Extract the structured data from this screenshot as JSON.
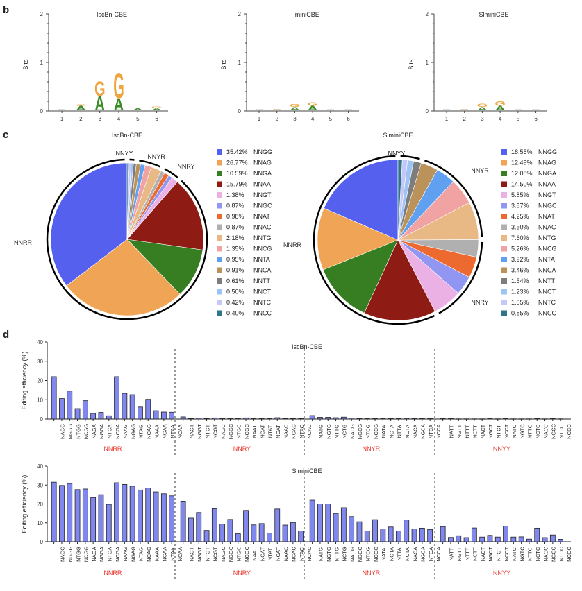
{
  "panels": {
    "b": "b",
    "c": "c",
    "d": "d"
  },
  "chart_data": [
    {
      "type": "logo",
      "panel": "b",
      "title": "IscBn-CBE",
      "ylabel": "Bits",
      "ylim": [
        0,
        2
      ],
      "yticks": [
        "0",
        "1",
        "2"
      ],
      "xticks": [
        "1",
        "2",
        "3",
        "4",
        "5",
        "6"
      ],
      "positions": [
        {
          "pos": 1,
          "letters": []
        },
        {
          "pos": 2,
          "letters": [
            {
              "l": "A",
              "h": 0.09
            },
            {
              "l": "G",
              "h": 0.03
            }
          ]
        },
        {
          "pos": 3,
          "letters": [
            {
              "l": "A",
              "h": 0.3
            },
            {
              "l": "G",
              "h": 0.3
            }
          ]
        },
        {
          "pos": 4,
          "letters": [
            {
              "l": "A",
              "h": 0.25
            },
            {
              "l": "G",
              "h": 0.53
            }
          ]
        },
        {
          "pos": 5,
          "letters": [
            {
              "l": "A",
              "h": 0.05
            }
          ]
        },
        {
          "pos": 6,
          "letters": [
            {
              "l": "A",
              "h": 0.05
            },
            {
              "l": "G",
              "h": 0.03
            }
          ]
        }
      ]
    },
    {
      "type": "logo",
      "panel": "b",
      "title": "IminiCBE",
      "ylabel": "Bits",
      "ylim": [
        0,
        2
      ],
      "yticks": [
        "0",
        "1",
        "2"
      ],
      "xticks": [
        "1",
        "2",
        "3",
        "4",
        "5",
        "6"
      ],
      "positions": [
        {
          "pos": 1,
          "letters": []
        },
        {
          "pos": 2,
          "letters": [
            {
              "l": "G",
              "h": 0.02
            }
          ]
        },
        {
          "pos": 3,
          "letters": [
            {
              "l": "A",
              "h": 0.07
            },
            {
              "l": "G",
              "h": 0.06
            }
          ]
        },
        {
          "pos": 4,
          "letters": [
            {
              "l": "A",
              "h": 0.09
            },
            {
              "l": "G",
              "h": 0.08
            }
          ]
        },
        {
          "pos": 5,
          "letters": []
        },
        {
          "pos": 6,
          "letters": []
        }
      ]
    },
    {
      "type": "logo",
      "panel": "b",
      "title": "SlminiCBE",
      "ylabel": "Bits",
      "ylim": [
        0,
        2
      ],
      "yticks": [
        "0",
        "1",
        "2"
      ],
      "xticks": [
        "1",
        "2",
        "3",
        "4",
        "5",
        "6"
      ],
      "positions": [
        {
          "pos": 1,
          "letters": []
        },
        {
          "pos": 2,
          "letters": [
            {
              "l": "G",
              "h": 0.02
            }
          ]
        },
        {
          "pos": 3,
          "letters": [
            {
              "l": "A",
              "h": 0.07
            },
            {
              "l": "G",
              "h": 0.07
            }
          ]
        },
        {
          "pos": 4,
          "letters": [
            {
              "l": "A",
              "h": 0.09
            },
            {
              "l": "G",
              "h": 0.09
            }
          ]
        },
        {
          "pos": 5,
          "letters": []
        },
        {
          "pos": 6,
          "letters": []
        }
      ]
    },
    {
      "type": "pie",
      "panel": "c",
      "title": "IscBn-CBE",
      "groups": [
        {
          "label": "NNRR",
          "members": [
            "NNGG",
            "NNAG",
            "NNGA",
            "NNAA"
          ]
        },
        {
          "label": "NNRY",
          "members": [
            "NNGT",
            "NNGC",
            "NNAT",
            "NNAC"
          ]
        },
        {
          "label": "NNYR",
          "members": [
            "NNTG",
            "NNCG",
            "NNTA",
            "NNCA"
          ]
        },
        {
          "label": "NNYY",
          "members": [
            "NNTT",
            "NNCT",
            "NNTC",
            "NNCC"
          ]
        }
      ],
      "slices": [
        {
          "label": "NNGG",
          "value": 35.42,
          "pct": "35.42%",
          "color": "#5560ee"
        },
        {
          "label": "NNAG",
          "value": 26.77,
          "pct": "26.77%",
          "color": "#f0a456"
        },
        {
          "label": "NNGA",
          "value": 10.59,
          "pct": "10.59%",
          "color": "#377e22"
        },
        {
          "label": "NNAA",
          "value": 15.79,
          "pct": "15.79%",
          "color": "#8e1b14"
        },
        {
          "label": "NNGT",
          "value": 1.38,
          "pct": "1.38%",
          "color": "#ebb0e4"
        },
        {
          "label": "NNGC",
          "value": 0.87,
          "pct": "0.87%",
          "color": "#9196f3"
        },
        {
          "label": "NNAT",
          "value": 0.98,
          "pct": "0.98%",
          "color": "#ec692f"
        },
        {
          "label": "NNAC",
          "value": 0.87,
          "pct": "0.87%",
          "color": "#b0b0b0"
        },
        {
          "label": "NNTG",
          "value": 2.18,
          "pct": "2.18%",
          "color": "#e9b985"
        },
        {
          "label": "NNCG",
          "value": 1.35,
          "pct": "1.35%",
          "color": "#f1a3a3"
        },
        {
          "label": "NNTA",
          "value": 0.95,
          "pct": "0.95%",
          "color": "#60a0f0"
        },
        {
          "label": "NNCA",
          "value": 0.91,
          "pct": "0.91%",
          "color": "#bb925a"
        },
        {
          "label": "NNTT",
          "value": 0.61,
          "pct": "0.61%",
          "color": "#7d7d7d"
        },
        {
          "label": "NNCT",
          "value": 0.5,
          "pct": "0.50%",
          "color": "#9ec3f5"
        },
        {
          "label": "NNTC",
          "value": 0.42,
          "pct": "0.42%",
          "color": "#c6c6f8"
        },
        {
          "label": "NNCC",
          "value": 0.4,
          "pct": "0.40%",
          "color": "#2f7588"
        }
      ],
      "legend": "right"
    },
    {
      "type": "pie",
      "panel": "c",
      "title": "SlminiCBE",
      "groups": [
        {
          "label": "NNRR",
          "members": [
            "NNGG",
            "NNAG",
            "NNGA",
            "NNAA"
          ]
        },
        {
          "label": "NNRY",
          "members": [
            "NNGT",
            "NNGC",
            "NNAT",
            "NNAC"
          ]
        },
        {
          "label": "NNYR",
          "members": [
            "NNTG",
            "NNCG",
            "NNTA",
            "NNCA"
          ]
        },
        {
          "label": "NNYY",
          "members": [
            "NNTT",
            "NNCT",
            "NNTC",
            "NNCC"
          ]
        }
      ],
      "slices": [
        {
          "label": "NNGG",
          "value": 18.55,
          "pct": "18.55%",
          "color": "#5560ee"
        },
        {
          "label": "NNAG",
          "value": 12.49,
          "pct": "12.49%",
          "color": "#f0a456"
        },
        {
          "label": "NNGA",
          "value": 12.08,
          "pct": "12.08%",
          "color": "#377e22"
        },
        {
          "label": "NNAA",
          "value": 14.5,
          "pct": "14.50%",
          "color": "#8e1b14"
        },
        {
          "label": "NNGT",
          "value": 5.85,
          "pct": "5.85%",
          "color": "#ebb0e4"
        },
        {
          "label": "NNGC",
          "value": 3.87,
          "pct": "3.87%",
          "color": "#9196f3"
        },
        {
          "label": "NNAT",
          "value": 4.25,
          "pct": "4.25%",
          "color": "#ec692f"
        },
        {
          "label": "NNAC",
          "value": 3.5,
          "pct": "3.50%",
          "color": "#b0b0b0"
        },
        {
          "label": "NNTG",
          "value": 7.6,
          "pct": "7.60%",
          "color": "#e9b985"
        },
        {
          "label": "NNCG",
          "value": 5.26,
          "pct": "5.26%",
          "color": "#f1a3a3"
        },
        {
          "label": "NNTA",
          "value": 3.92,
          "pct": "3.92%",
          "color": "#60a0f0"
        },
        {
          "label": "NNCA",
          "value": 3.46,
          "pct": "3.46%",
          "color": "#bb925a"
        },
        {
          "label": "NNTT",
          "value": 1.54,
          "pct": "1.54%",
          "color": "#7d7d7d"
        },
        {
          "label": "NNCT",
          "value": 1.23,
          "pct": "1.23%",
          "color": "#9ec3f5"
        },
        {
          "label": "NNTC",
          "value": 1.05,
          "pct": "1.05%",
          "color": "#c6c6f8"
        },
        {
          "label": "NNCC",
          "value": 0.85,
          "pct": "0.85%",
          "color": "#2f7588"
        }
      ],
      "legend": "right"
    },
    {
      "type": "bar",
      "panel": "d",
      "title": "IscBn-CBE",
      "ylabel": "Editing efficiency (%)",
      "ylim": [
        0,
        40
      ],
      "yticks": [
        "0",
        "10",
        "20",
        "30",
        "40"
      ],
      "bar_color": "#8088f0",
      "group_label_color": "#e8332a",
      "groups": [
        {
          "label": "NNRR",
          "categories": [
            "NAGG",
            "NGGG",
            "NTGG",
            "NCGG",
            "NAGA",
            "NGGA",
            "NTGA",
            "NCGA",
            "NAAG",
            "NGAG",
            "NTAG",
            "NCAG",
            "NAAA",
            "NGAA",
            "NTAA",
            "NCAA"
          ],
          "values": [
            22.0,
            10.6,
            14.5,
            5.4,
            9.5,
            2.9,
            3.4,
            1.7,
            22.0,
            13.3,
            12.6,
            6.2,
            10.2,
            4.3,
            3.6,
            3.5
          ]
        },
        {
          "label": "NNRY",
          "categories": [
            "NAGT",
            "NGGT",
            "NTGT",
            "NCGT",
            "NAGC",
            "NGGC",
            "NTGC",
            "NCGC",
            "NAAT",
            "NGAT",
            "NTAT",
            "NCAT",
            "NAAC",
            "NGAC",
            "NTAC",
            "NCAC"
          ],
          "values": [
            1.1,
            0.3,
            0.5,
            0.2,
            0.6,
            0.2,
            0.2,
            0.2,
            0.6,
            0.2,
            0.2,
            0.2,
            0.7,
            0.3,
            0.3,
            0.2
          ]
        },
        {
          "label": "NNYR",
          "categories": [
            "NATG",
            "NGTG",
            "NTTG",
            "NCTG",
            "NACG",
            "NGCG",
            "NTCG",
            "NCCG",
            "NATA",
            "NGTA",
            "NTTA",
            "NCTA",
            "NACA",
            "NGCA",
            "NTCA",
            "NCCA"
          ],
          "values": [
            1.8,
            0.9,
            0.9,
            0.7,
            1.0,
            0.5,
            0.2,
            0.2,
            0.2,
            0.2,
            0.2,
            0.2,
            0.4,
            0.2,
            0.2,
            0.2
          ]
        },
        {
          "label": "NNYY",
          "categories": [
            "NATT",
            "NGTT",
            "NTTT",
            "NCTT",
            "NACT",
            "NGCT",
            "NTCT",
            "NCCT",
            "NATC",
            "NGTC",
            "NTTC",
            "NCTC",
            "NACC",
            "NGCC",
            "NTCC",
            "NCCC"
          ],
          "values": [
            0.2,
            0.2,
            0.1,
            0.1,
            0.1,
            0.1,
            0.2,
            0.1,
            0.2,
            0.1,
            0.1,
            0.1,
            0.2,
            0.1,
            0.2,
            0.1
          ]
        }
      ]
    },
    {
      "type": "bar",
      "panel": "d",
      "title": "SlminiCBE",
      "ylabel": "Editing efficiency (%)",
      "ylim": [
        0,
        40
      ],
      "yticks": [
        "0",
        "10",
        "20",
        "30",
        "40"
      ],
      "bar_color": "#8088f0",
      "group_label_color": "#e8332a",
      "groups": [
        {
          "label": "NNRR",
          "categories": [
            "NAGG",
            "NGGG",
            "NTGG",
            "NCGG",
            "NAGA",
            "NGGA",
            "NTGA",
            "NCGA",
            "NAAG",
            "NGAG",
            "NTAG",
            "NCAG",
            "NAAA",
            "NGAA",
            "NTAA",
            "NCAA"
          ],
          "values": [
            31.5,
            29.8,
            30.8,
            27.6,
            27.9,
            23.4,
            24.9,
            19.8,
            31.2,
            30.3,
            29.4,
            27.4,
            28.4,
            26.4,
            25.4,
            24.3
          ]
        },
        {
          "label": "NNRY",
          "categories": [
            "NAGT",
            "NGGT",
            "NTGT",
            "NCGT",
            "NAGC",
            "NGGC",
            "NTGC",
            "NCGC",
            "NAAT",
            "NGAT",
            "NTAT",
            "NCAT",
            "NAAC",
            "NGAC",
            "NTAC",
            "NCAC"
          ],
          "values": [
            21.5,
            12.5,
            15.5,
            6.0,
            17.5,
            9.3,
            11.8,
            4.2,
            16.6,
            8.9,
            9.6,
            4.6,
            17.3,
            8.8,
            10.2,
            5.7
          ]
        },
        {
          "label": "NNYR",
          "categories": [
            "NATG",
            "NGTG",
            "NTTG",
            "NCTG",
            "NACG",
            "NGCG",
            "NTCG",
            "NCCG",
            "NATA",
            "NGTA",
            "NTTA",
            "NCTA",
            "NACA",
            "NGCA",
            "NTCA",
            "NCCA"
          ],
          "values": [
            22.0,
            20.0,
            20.0,
            15.0,
            18.0,
            13.3,
            10.6,
            5.7,
            11.7,
            6.8,
            7.8,
            5.7,
            11.5,
            6.8,
            7.2,
            6.5
          ]
        },
        {
          "label": "NNYY",
          "categories": [
            "NATT",
            "NGTT",
            "NTTT",
            "NCTT",
            "NACT",
            "NGCT",
            "NTCT",
            "NCCT",
            "NATC",
            "NGTC",
            "NTTC",
            "NCTC",
            "NACC",
            "NGCC",
            "NTCC",
            "NCCC"
          ],
          "values": [
            8.0,
            2.3,
            3.2,
            2.2,
            7.3,
            2.5,
            3.4,
            2.5,
            8.3,
            2.5,
            2.6,
            1.4,
            7.2,
            2.2,
            3.6,
            1.3
          ]
        }
      ]
    }
  ]
}
